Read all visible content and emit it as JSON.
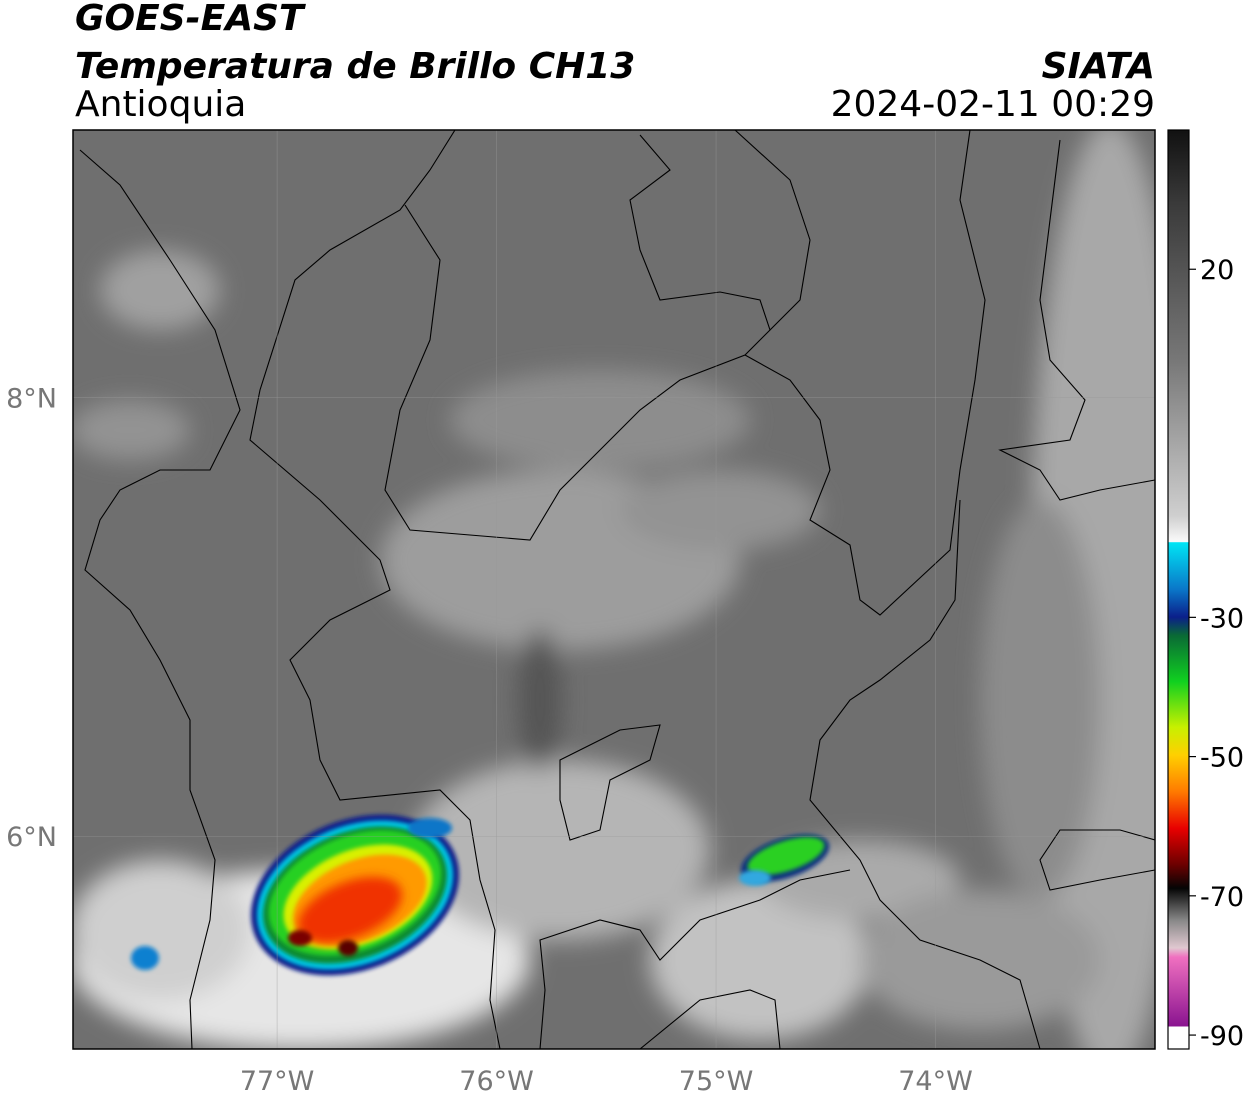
{
  "header": {
    "title": "GOES-EAST",
    "subtitle": "Temperatura de Brillo CH13",
    "source": "SIATA",
    "region": "Antioquia",
    "datetime": "2024-02-11 00:29"
  },
  "map": {
    "lon_range": [
      -77.93,
      -73.0
    ],
    "lat_range": [
      5.03,
      9.22
    ],
    "lon_ticks": [
      {
        "value": -77,
        "label": "77°W"
      },
      {
        "value": -76,
        "label": "76°W"
      },
      {
        "value": -75,
        "label": "75°W"
      },
      {
        "value": -74,
        "label": "74°W"
      }
    ],
    "lat_ticks": [
      {
        "value": 8,
        "label": "8°N"
      },
      {
        "value": 6,
        "label": "6°N"
      }
    ],
    "grid": true
  },
  "colorbar": {
    "range": [
      -92,
      40
    ],
    "ticks": [
      20,
      -30,
      -50,
      -70,
      -90
    ]
  }
}
